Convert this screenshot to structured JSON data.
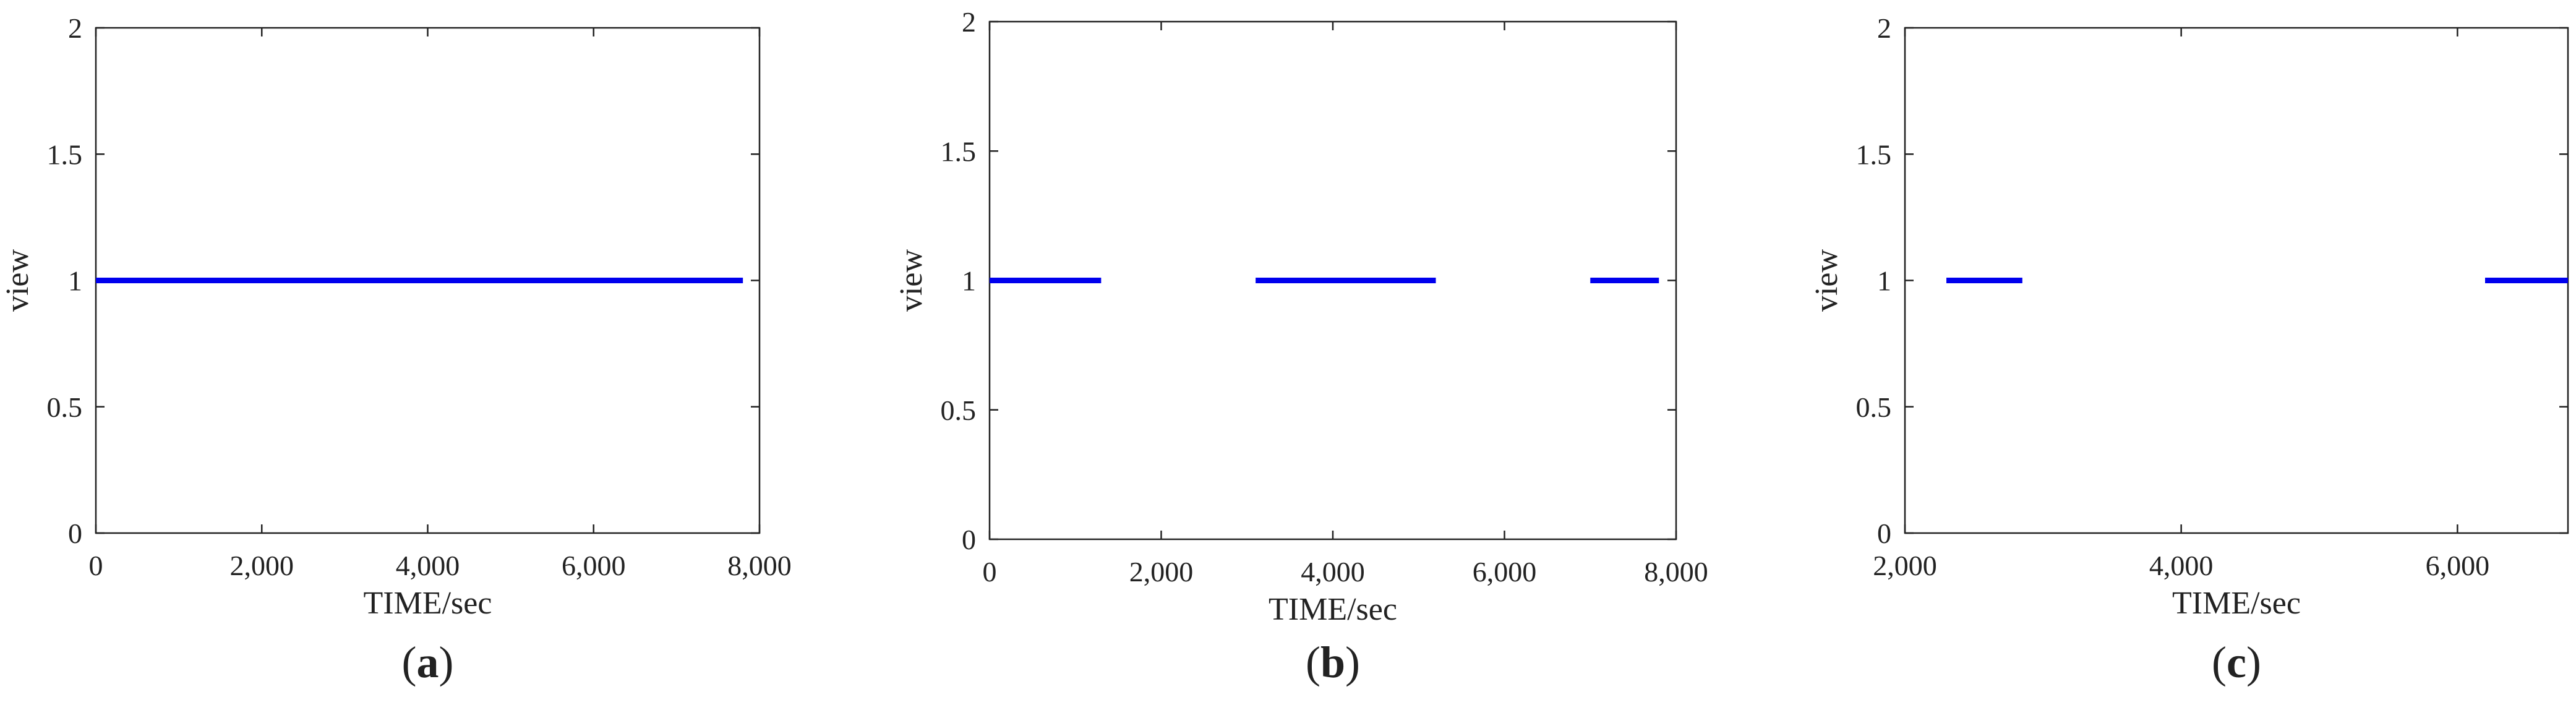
{
  "colors": {
    "series": "#0000EE",
    "axes": "#222222",
    "background": "#FFFFFF"
  },
  "chart_data": [
    {
      "type": "line",
      "panel_label": {
        "open": "(",
        "letter": "a",
        "close": ")"
      },
      "xlabel": "TIME/sec",
      "ylabel": "view",
      "xlim": [
        0,
        8000
      ],
      "ylim": [
        0,
        2
      ],
      "xticks": [
        0,
        2000,
        4000,
        6000,
        8000
      ],
      "xtick_labels": [
        "0",
        "2,000",
        "4,000",
        "6,000",
        "8,000"
      ],
      "yticks": [
        0,
        0.5,
        1,
        1.5,
        2
      ],
      "ytick_labels": [
        "0",
        "0.5",
        "1",
        "1.5",
        "2"
      ],
      "grid": false,
      "segments": [
        {
          "x": [
            0,
            7800
          ],
          "y": 1
        }
      ]
    },
    {
      "type": "line",
      "panel_label": {
        "open": "(",
        "letter": "b",
        "close": ")"
      },
      "xlabel": "TIME/sec",
      "ylabel": "view",
      "xlim": [
        0,
        8000
      ],
      "ylim": [
        0,
        2
      ],
      "xticks": [
        0,
        2000,
        4000,
        6000,
        8000
      ],
      "xtick_labels": [
        "0",
        "2,000",
        "4,000",
        "6,000",
        "8,000"
      ],
      "yticks": [
        0,
        0.5,
        1,
        1.5,
        2
      ],
      "ytick_labels": [
        "0",
        "0.5",
        "1",
        "1.5",
        "2"
      ],
      "grid": false,
      "segments": [
        {
          "x": [
            0,
            1300
          ],
          "y": 1
        },
        {
          "x": [
            3100,
            5200
          ],
          "y": 1
        },
        {
          "x": [
            7000,
            7800
          ],
          "y": 1
        }
      ]
    },
    {
      "type": "line",
      "panel_label": {
        "open": "(",
        "letter": "c",
        "close": ")"
      },
      "xlabel": "TIME/sec",
      "ylabel": "view",
      "xlim": [
        2000,
        6800
      ],
      "ylim": [
        0,
        2
      ],
      "xticks": [
        2000,
        4000,
        6000
      ],
      "xtick_labels": [
        "2,000",
        "4,000",
        "6,000"
      ],
      "yticks": [
        0,
        0.5,
        1,
        1.5,
        2
      ],
      "ytick_labels": [
        "0",
        "0.5",
        "1",
        "1.5",
        "2"
      ],
      "grid": false,
      "segments": [
        {
          "x": [
            2300,
            2850
          ],
          "y": 1
        },
        {
          "x": [
            6200,
            6800
          ],
          "y": 1
        }
      ]
    }
  ]
}
